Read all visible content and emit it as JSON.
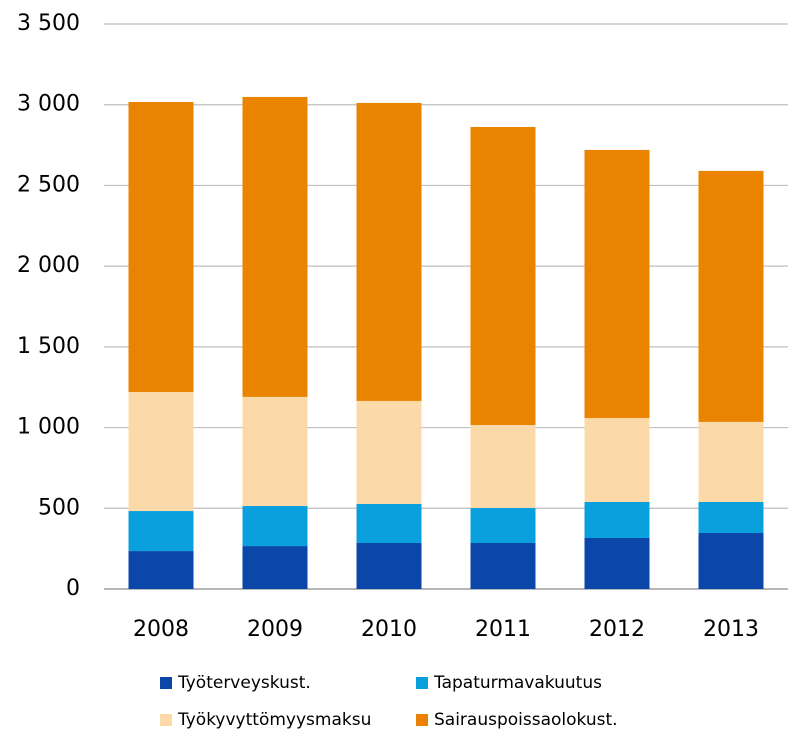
{
  "chart_data": {
    "type": "stacked_bar",
    "categories": [
      "2008",
      "2009",
      "2010",
      "2011",
      "2012",
      "2013"
    ],
    "series": [
      {
        "name": "Työterveyskust.",
        "color": "#0a47a9",
        "values": [
          235,
          266,
          285,
          285,
          316,
          347
        ]
      },
      {
        "name": "Tapaturmavakuutus",
        "color": "#0aa0de",
        "values": [
          248,
          248,
          242,
          217,
          223,
          192
        ]
      },
      {
        "name": "Työkyvyttömyysmaksu",
        "color": "#fcd9a8",
        "values": [
          737,
          676,
          638,
          514,
          520,
          496
        ]
      },
      {
        "name": "Sairauspoissaolokust.",
        "color": "#e98300",
        "values": [
          1797,
          1858,
          1846,
          1846,
          1661,
          1555
        ]
      }
    ],
    "ylim": [
      0,
      3500
    ],
    "yticks": [
      0,
      {
        "value": 500,
        "label": "500"
      },
      {
        "value": 1000,
        "label": "1 000"
      },
      {
        "value": 1500,
        "label": "1 500"
      },
      {
        "value": 2000,
        "label": "2 000"
      },
      {
        "value": 2500,
        "label": "2 500"
      },
      {
        "value": 3000,
        "label": "3 000"
      },
      {
        "value": 3500,
        "label": "3 500"
      }
    ],
    "grid": true
  }
}
